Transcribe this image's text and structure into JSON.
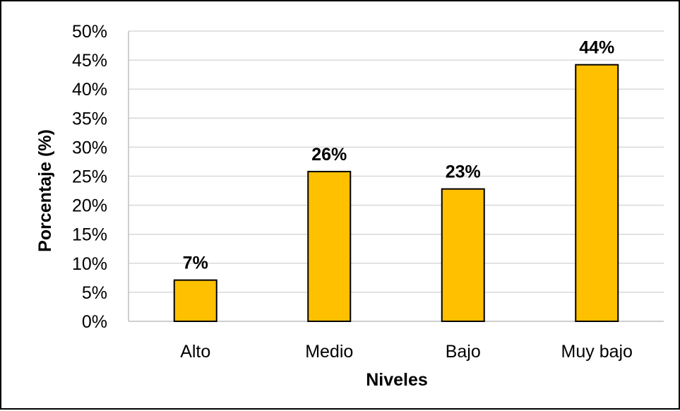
{
  "chart_data": {
    "type": "bar",
    "categories": [
      "Alto",
      "Medio",
      "Bajo",
      "Muy bajo"
    ],
    "values": [
      7.1,
      25.8,
      22.8,
      44.2
    ],
    "data_labels": [
      "7%",
      "26%",
      "23%",
      "44%"
    ],
    "xlabel": "Niveles",
    "ylabel": "Porcentaje (%)",
    "ylim": [
      0,
      50
    ],
    "yticks": [
      0,
      5,
      10,
      15,
      20,
      25,
      30,
      35,
      40,
      45,
      50
    ],
    "ytick_labels": [
      "0%",
      "5%",
      "10%",
      "15%",
      "20%",
      "25%",
      "30%",
      "35%",
      "40%",
      "45%",
      "50%"
    ],
    "grid": true,
    "legend": "none",
    "bar_color": "#FFC000",
    "bar_edge_color": "#000000",
    "grid_color": "#D9D9D9"
  }
}
